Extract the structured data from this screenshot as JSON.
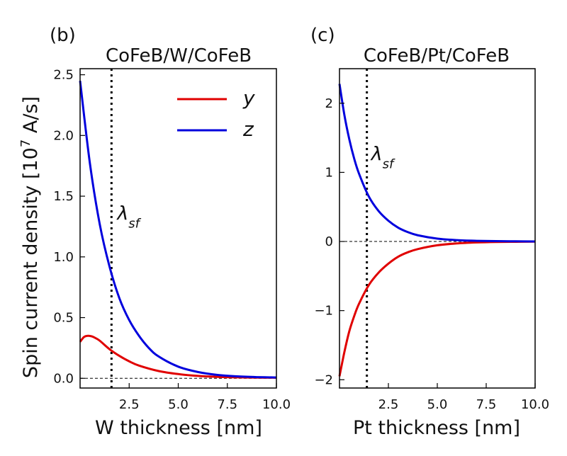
{
  "ylabel": "Spin current density [10",
  "ylabel_exp": "7",
  "ylabel_unit": " A/s]",
  "chart_data": [
    {
      "type": "line",
      "panel_label": "(b)",
      "title": "CoFeB/W/CoFeB",
      "xlabel": "W thickness [nm]",
      "xlim": [
        0.0,
        10.0
      ],
      "ylim": [
        -0.08,
        2.55
      ],
      "xticks": [
        2.5,
        5.0,
        7.5,
        10.0
      ],
      "xtick_labels": [
        "2.5",
        "5.0",
        "7.5",
        "10.0"
      ],
      "yticks": [
        0.0,
        0.5,
        1.0,
        1.5,
        2.0,
        2.5
      ],
      "ytick_labels": [
        "0.0",
        "0.5",
        "1.0",
        "1.5",
        "2.0",
        "2.5"
      ],
      "annotation": {
        "symbol": "λ",
        "sub": "sf",
        "x_ref": 1.6
      },
      "series": [
        {
          "name": "y",
          "color": "#e00000",
          "x": [
            0.0,
            0.2,
            0.4,
            0.6,
            0.8,
            1.0,
            1.5,
            2.0,
            2.5,
            3.0,
            4.0,
            5.0,
            6.0,
            7.0,
            8.0,
            9.0,
            10.0
          ],
          "values": [
            0.3,
            0.34,
            0.35,
            0.345,
            0.33,
            0.31,
            0.24,
            0.185,
            0.14,
            0.105,
            0.06,
            0.035,
            0.02,
            0.012,
            0.008,
            0.006,
            0.005
          ]
        },
        {
          "name": "z",
          "color": "#0000dd",
          "x": [
            0.0,
            0.5,
            1.0,
            1.5,
            2.0,
            2.5,
            3.0,
            3.5,
            4.0,
            5.0,
            6.0,
            7.0,
            8.0,
            9.0,
            10.0
          ],
          "values": [
            2.45,
            1.77,
            1.27,
            0.92,
            0.66,
            0.48,
            0.35,
            0.25,
            0.18,
            0.096,
            0.052,
            0.028,
            0.016,
            0.01,
            0.007
          ]
        }
      ],
      "dashed_line_y": 0.0,
      "vline_x": 1.6
    },
    {
      "type": "line",
      "panel_label": "(c)",
      "title": "CoFeB/Pt/CoFeB",
      "xlabel": "Pt thickness [nm]",
      "xlim": [
        0.0,
        10.0
      ],
      "ylim": [
        -2.12,
        2.5
      ],
      "xticks": [
        2.5,
        5.0,
        7.5,
        10.0
      ],
      "xtick_labels": [
        "2.5",
        "5.0",
        "7.5",
        "10.0"
      ],
      "yticks": [
        -2,
        -1,
        0,
        1,
        2
      ],
      "ytick_labels": [
        "−2",
        "−1",
        "0",
        "1",
        "2"
      ],
      "annotation": {
        "symbol": "λ",
        "sub": "sf",
        "x_ref": 1.4
      },
      "series": [
        {
          "name": "y",
          "color": "#e00000",
          "x": [
            0.0,
            0.25,
            0.5,
            0.75,
            1.0,
            1.5,
            2.0,
            2.5,
            3.0,
            3.5,
            4.0,
            5.0,
            6.0,
            7.0,
            8.0,
            9.0,
            10.0
          ],
          "values": [
            -1.95,
            -1.6,
            -1.3,
            -1.08,
            -0.9,
            -0.63,
            -0.45,
            -0.32,
            -0.22,
            -0.155,
            -0.11,
            -0.055,
            -0.028,
            -0.014,
            -0.007,
            -0.004,
            -0.002
          ]
        },
        {
          "name": "z",
          "color": "#0000dd",
          "x": [
            0.0,
            0.25,
            0.5,
            0.75,
            1.0,
            1.5,
            2.0,
            2.5,
            3.0,
            3.5,
            4.0,
            5.0,
            6.0,
            7.0,
            8.0,
            9.0,
            10.0
          ],
          "values": [
            2.28,
            1.83,
            1.48,
            1.2,
            0.98,
            0.65,
            0.44,
            0.3,
            0.2,
            0.135,
            0.09,
            0.042,
            0.02,
            0.01,
            0.005,
            0.003,
            0.001
          ]
        }
      ],
      "dashed_line_y": 0.0,
      "vline_x": 1.4
    }
  ],
  "legend": {
    "placement": "top-right of panel (b)",
    "entries": [
      {
        "label": "y",
        "color": "#e00000"
      },
      {
        "label": "z",
        "color": "#0000dd"
      }
    ]
  }
}
